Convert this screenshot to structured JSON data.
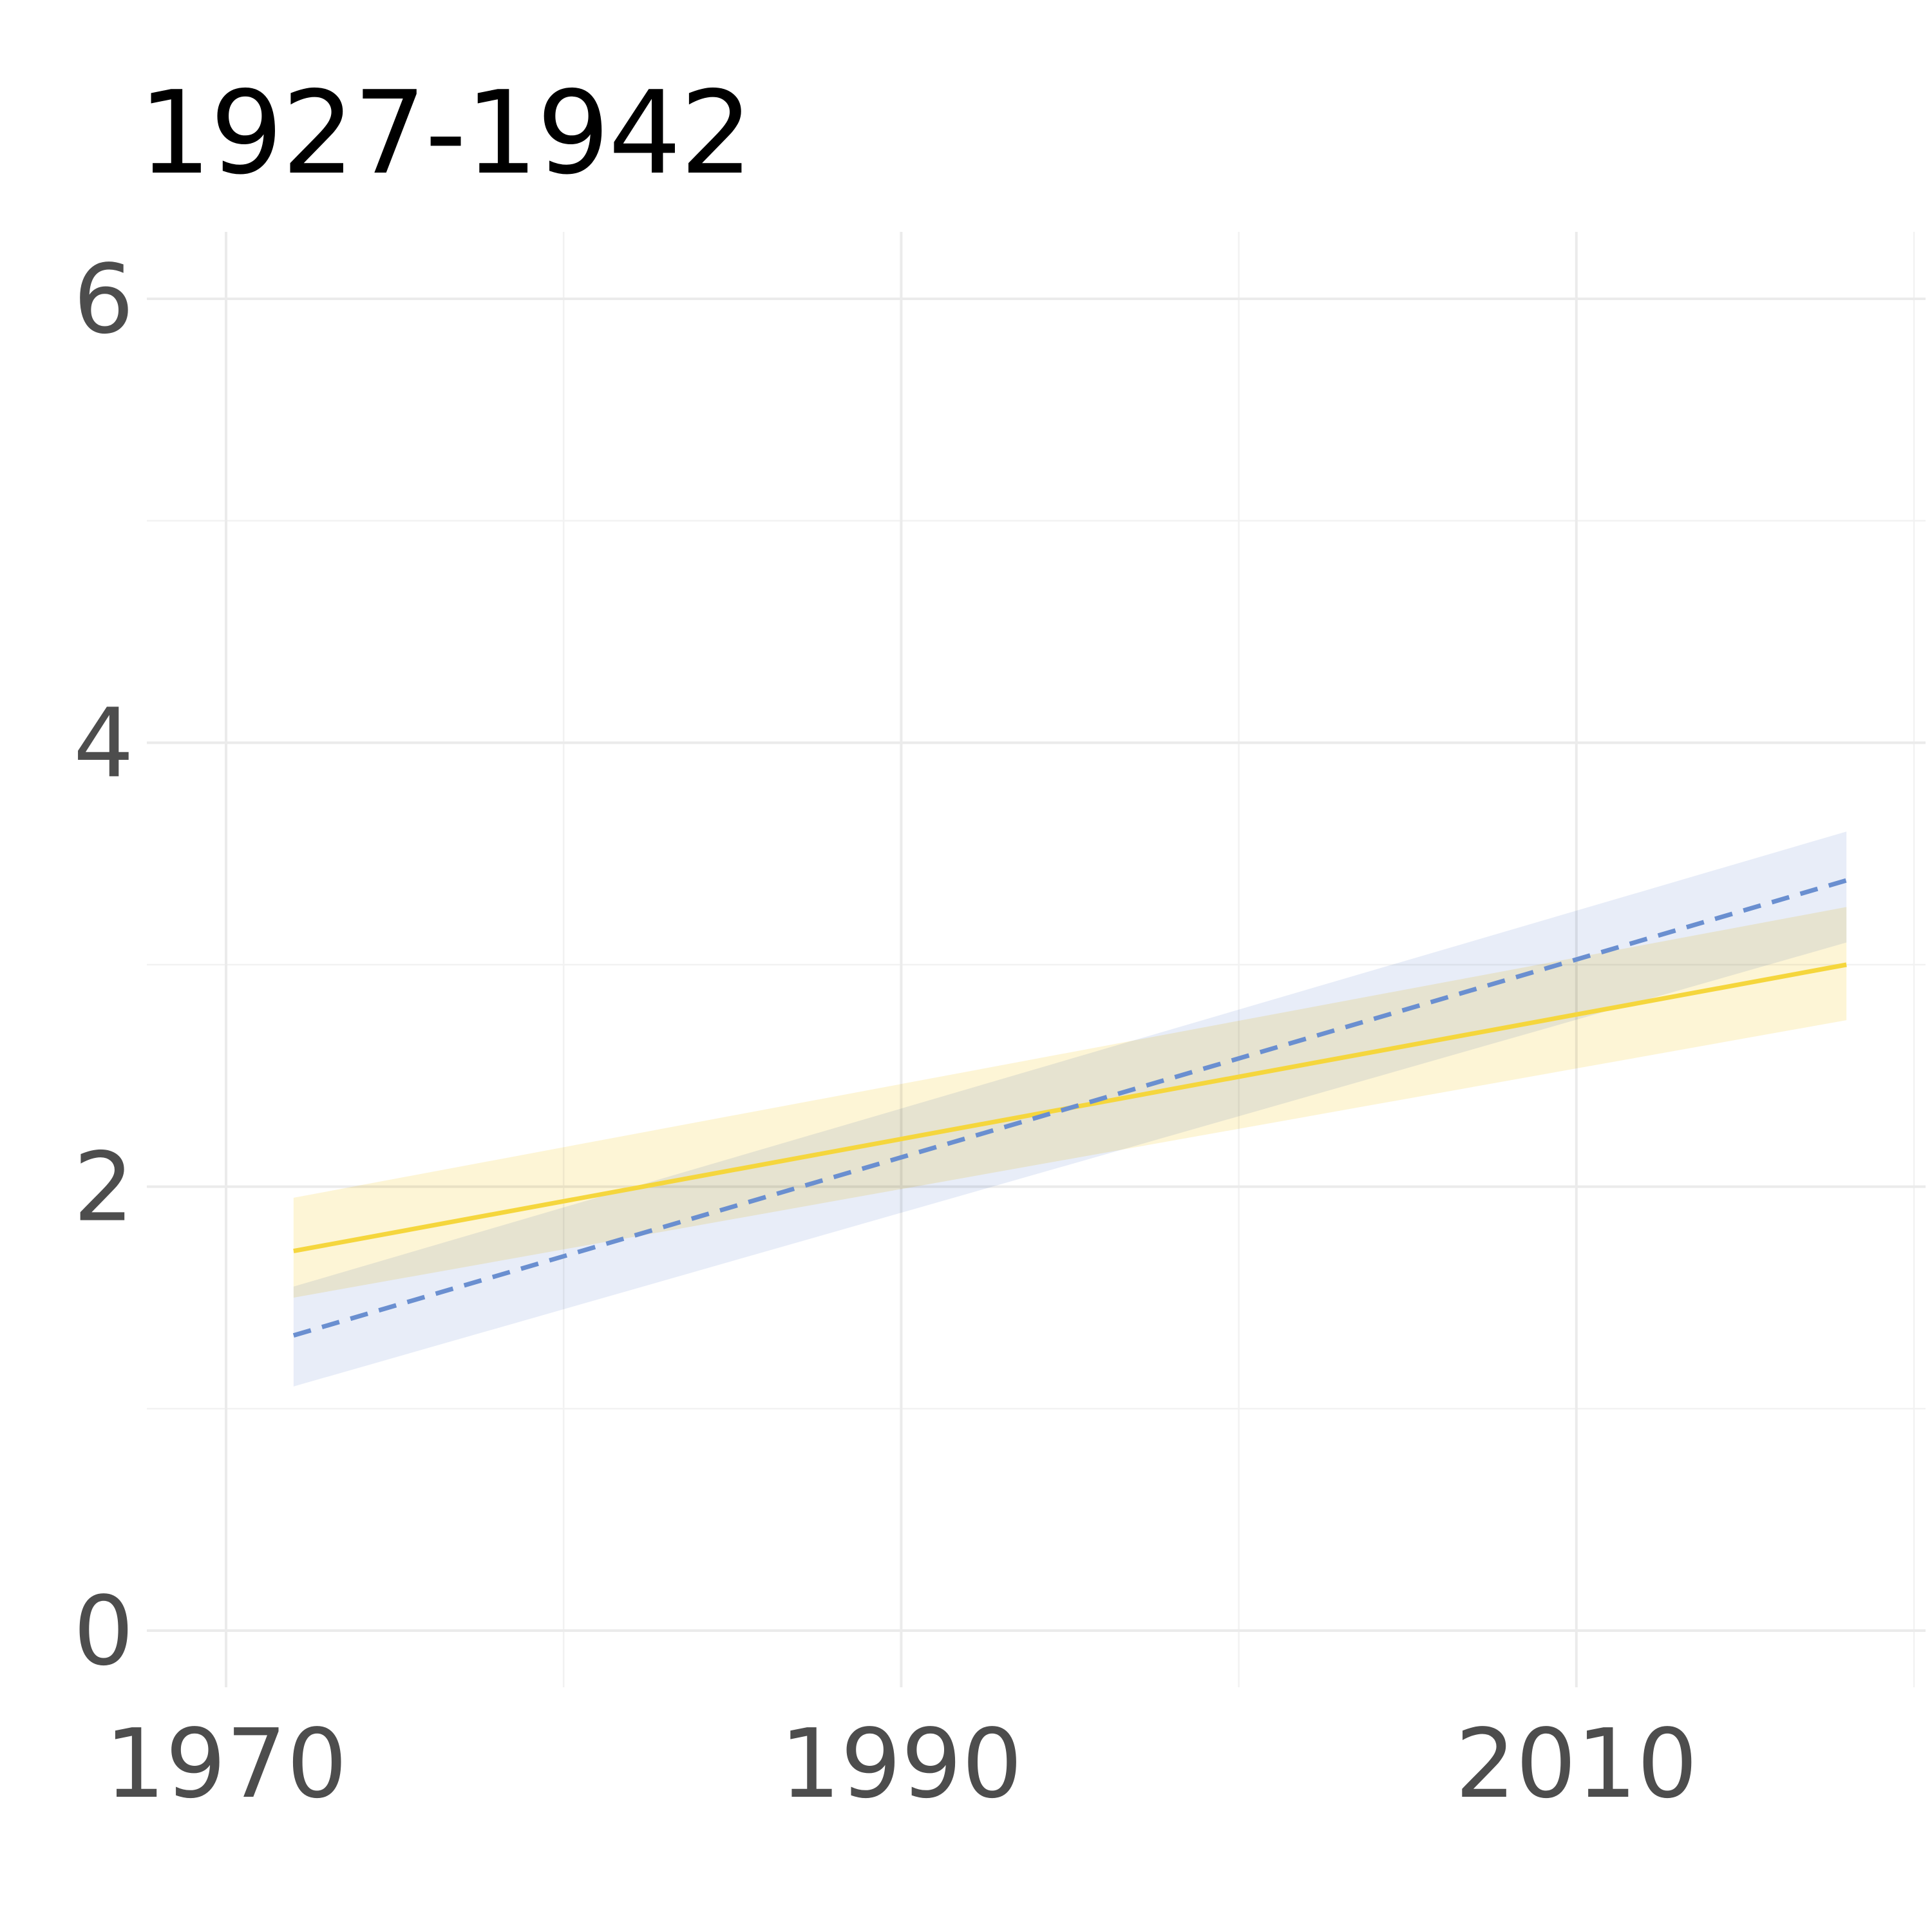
{
  "chart_data": {
    "type": "line",
    "title": "1927-1942",
    "xlabel": "",
    "ylabel": "",
    "xlim": [
      1968,
      2018
    ],
    "ylim": [
      -0.3,
      6.3
    ],
    "x_ticks": [
      1970,
      1990,
      2010
    ],
    "x_minor_ticks": [
      1980,
      2000,
      2020
    ],
    "y_ticks": [
      0,
      2,
      4,
      6
    ],
    "y_minor_ticks": [
      1,
      3,
      5
    ],
    "grid": true,
    "legend": "none",
    "x": [
      1972,
      2018
    ],
    "series": [
      {
        "color": "#f5d63d",
        "line_style": "solid",
        "values": [
          1.71,
          3.0
        ],
        "ci_lower": [
          1.5,
          2.75
        ],
        "ci_upper": [
          1.95,
          3.26
        ],
        "band_color": "#fdf3cf"
      },
      {
        "color": "#6a8fd0",
        "line_style": "dashed",
        "values": [
          1.33,
          3.38
        ],
        "ci_lower": [
          1.1,
          3.1
        ],
        "ci_upper": [
          1.55,
          3.6
        ],
        "band_color": "#e0e7f6"
      }
    ]
  }
}
